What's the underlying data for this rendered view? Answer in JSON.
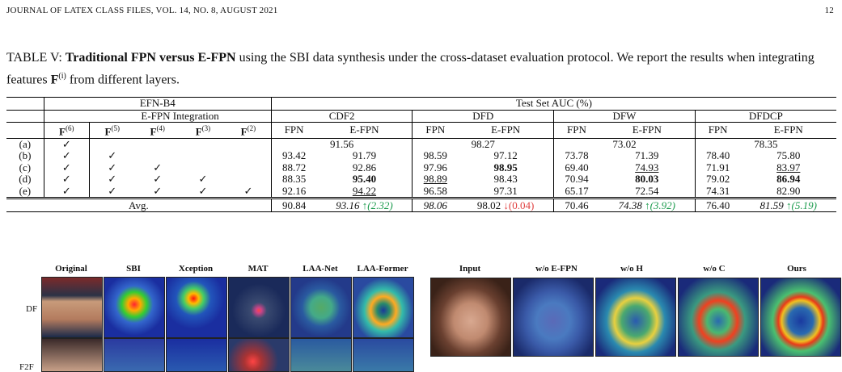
{
  "header": {
    "left": "JOURNAL OF LATEX CLASS FILES, VOL. 14, NO. 8, AUGUST 2021",
    "page": "12"
  },
  "caption": {
    "label": "TABLE V: ",
    "bold": "Traditional FPN versus E-FPN",
    "rest": " using the SBI data synthesis under the cross-dataset evaluation protocol. We report the results when integrating features ",
    "feat": "F",
    "sup": "(i)",
    "tail": " from different layers."
  },
  "table": {
    "h_backbone": "EFN-B4",
    "h_testset": "Test Set AUC (%)",
    "h_integration": "E-FPN Integration",
    "datasets": [
      "CDF2",
      "DFD",
      "DFW",
      "DFDCP"
    ],
    "features": [
      "F(6)",
      "F(5)",
      "F(4)",
      "F(3)",
      "F(2)"
    ],
    "fpn": "FPN",
    "efpn": "E-FPN",
    "avg_label": "Avg.",
    "rows": [
      {
        "id": "(a)",
        "checks": [
          1,
          0,
          0,
          0,
          0
        ],
        "merged": [
          "91.56",
          "98.27",
          "73.02",
          "78.35"
        ]
      },
      {
        "id": "(b)",
        "checks": [
          1,
          1,
          0,
          0,
          0
        ],
        "vals": [
          "93.42",
          "91.79",
          "98.59",
          "97.12",
          "73.78",
          "71.39",
          "78.40",
          "75.80"
        ]
      },
      {
        "id": "(c)",
        "checks": [
          1,
          1,
          1,
          0,
          0
        ],
        "vals": [
          "88.72",
          "92.86",
          "97.96",
          "98.95",
          "69.40",
          "74.93",
          "71.91",
          "83.97"
        ]
      },
      {
        "id": "(d)",
        "checks": [
          1,
          1,
          1,
          1,
          0
        ],
        "vals": [
          "88.35",
          "95.40",
          "98.89",
          "98.43",
          "70.94",
          "80.03",
          "79.02",
          "86.94"
        ]
      },
      {
        "id": "(e)",
        "checks": [
          1,
          1,
          1,
          1,
          1
        ],
        "vals": [
          "92.16",
          "94.22",
          "96.58",
          "97.31",
          "65.17",
          "72.54",
          "74.31",
          "82.90"
        ]
      }
    ],
    "avg": {
      "cdf2_fpn": "90.84",
      "cdf2_efpn": "93.16",
      "cdf2_delta": "↑(2.32)",
      "dfd_fpn": "98.06",
      "dfd_efpn": "98.02",
      "dfd_delta": "↓(0.04)",
      "dfw_fpn": "70.46",
      "dfw_efpn": "74.38",
      "dfw_delta": "↑(3.92)",
      "dfdcp_fpn": "76.40",
      "dfdcp_efpn": "81.59",
      "dfdcp_delta": "↑(5.19)"
    }
  },
  "figure_left": {
    "columns": [
      "Original",
      "SBI",
      "Xception",
      "MAT",
      "LAA-Net",
      "LAA-Former"
    ],
    "rows": [
      "DF",
      "F2F"
    ]
  },
  "figure_right": {
    "columns": [
      "Input",
      "w/o E-FPN",
      "w/o H",
      "w/o C",
      "Ours"
    ]
  },
  "colors": {
    "up": "#1a9a4c",
    "down": "#e04040"
  }
}
